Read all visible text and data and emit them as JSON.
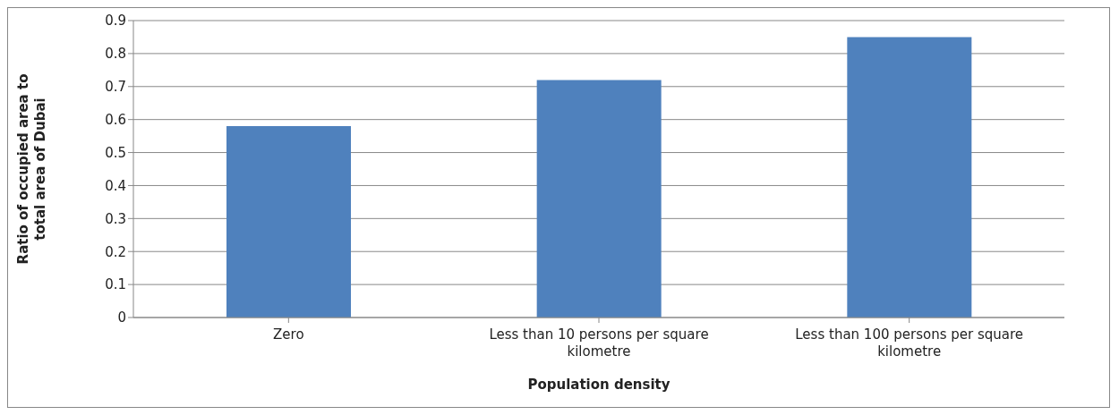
{
  "chart_data": {
    "type": "bar",
    "xlabel": "Population density",
    "ylabel": "Ratio of occupied area to total area of Dubai",
    "categories": [
      "Zero",
      "Less than 10 persons per square kilometre",
      "Less than 100 persons per square kilometre"
    ],
    "values": [
      0.58,
      0.72,
      0.85
    ],
    "color": "#4f81bd",
    "ylim": [
      0,
      0.9
    ],
    "yticks": [
      0,
      0.1,
      0.2,
      0.3,
      0.4,
      0.5,
      0.6,
      0.7,
      0.8,
      0.9
    ],
    "grid": "y",
    "legend": false
  }
}
